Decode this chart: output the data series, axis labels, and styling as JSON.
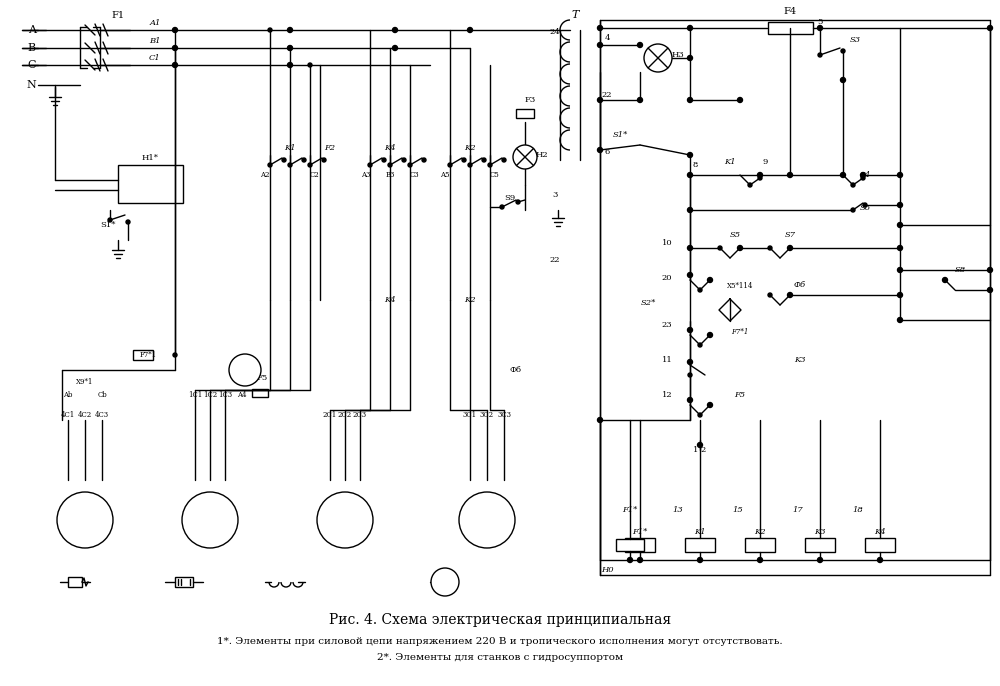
{
  "title": "Рис. 4. Схема электрическая принципиальная",
  "footnote1": "1*. Элементы при силовой цепи напряжением 220 В и тропического исполнения могут отсутствовать.",
  "footnote2": "2*. Элементы для станков с гидросуппортом",
  "bg_color": "#ffffff",
  "fig_width": 10.0,
  "fig_height": 6.86
}
